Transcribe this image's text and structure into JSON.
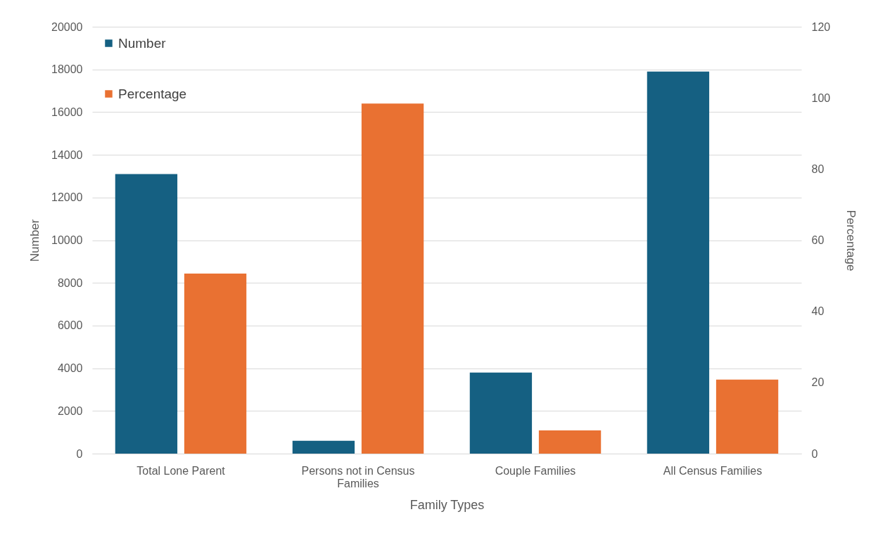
{
  "chart_data": {
    "type": "bar",
    "xlabel": "Family Types",
    "ylabel": "Number",
    "y2label": "Percentage",
    "categories": [
      "Total Lone Parent",
      "Persons not in Census Families",
      "Couple Families",
      "All Census Families"
    ],
    "series": [
      {
        "name": "Number",
        "color": "#156082",
        "values": [
          13100,
          600,
          3800,
          17900
        ]
      },
      {
        "name": "Percentage",
        "color": "#e97132",
        "axis": "y2",
        "values": [
          50.6,
          98.4,
          6.5,
          20.8
        ]
      }
    ],
    "ylim": [
      0,
      20000
    ],
    "yticks": [
      0,
      2000,
      4000,
      6000,
      8000,
      10000,
      12000,
      14000,
      16000,
      18000,
      20000
    ],
    "y2lim": [
      0,
      120
    ],
    "y2ticks": [
      0,
      20,
      40,
      60,
      80,
      100,
      120
    ],
    "grid": "y",
    "legend": "top left"
  }
}
